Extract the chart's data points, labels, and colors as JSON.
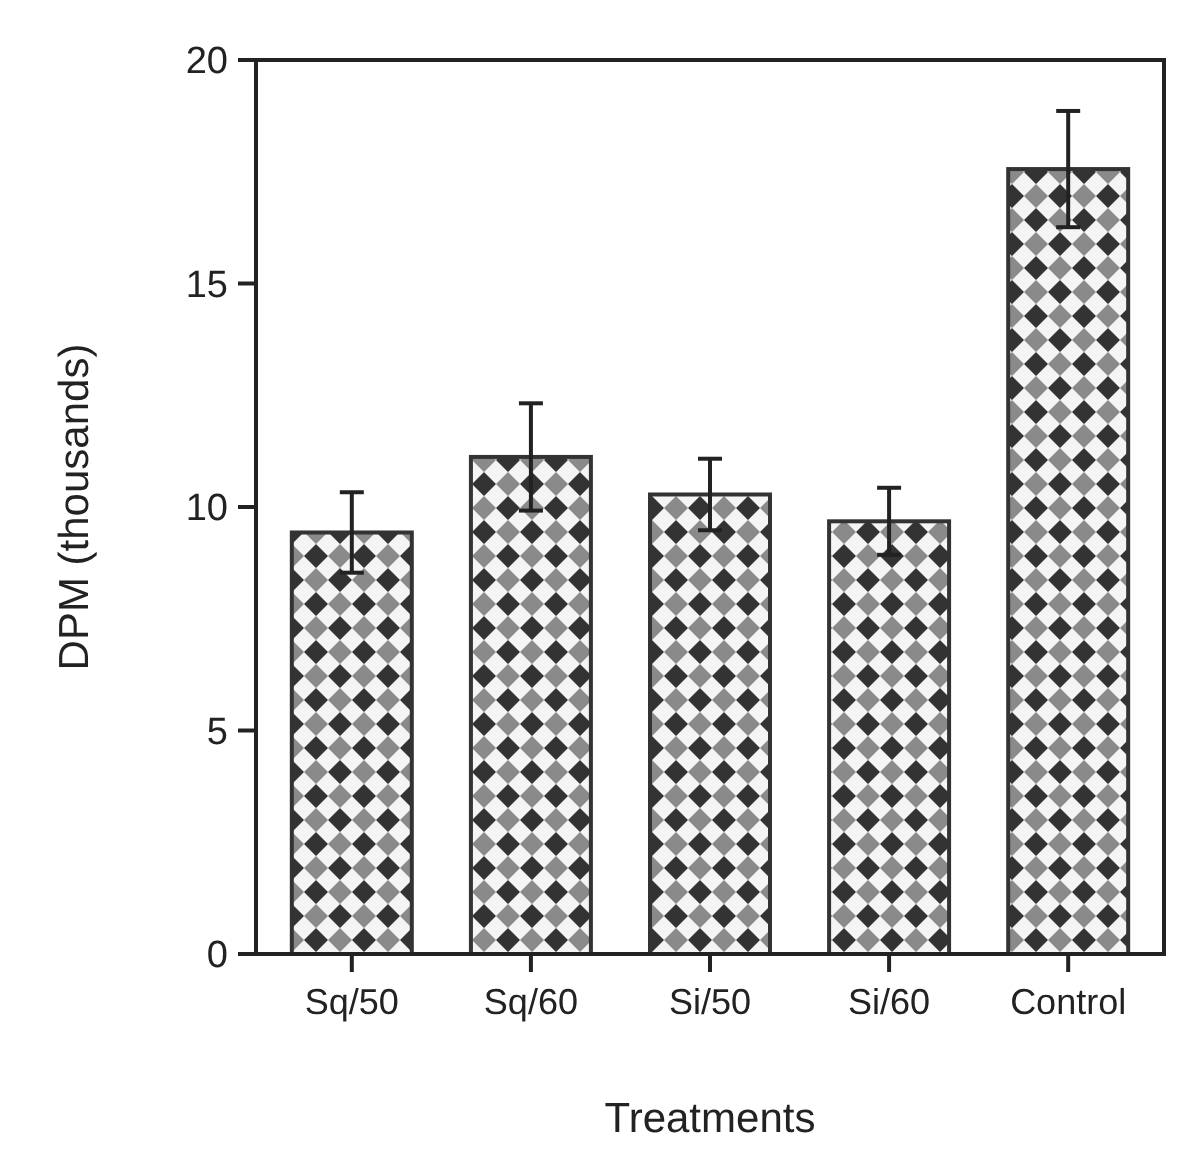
{
  "chart_data": {
    "type": "bar",
    "xlabel": "Treatments",
    "ylabel": "DPM (thousands)",
    "categories": [
      "Sq/50",
      "Sq/60",
      "Si/50",
      "Si/60",
      "Control"
    ],
    "values": [
      9.43,
      11.12,
      10.28,
      9.68,
      17.56
    ],
    "errors": [
      0.9,
      1.2,
      0.8,
      0.75,
      1.3
    ],
    "color": "#333333",
    "ylim": [
      0,
      20
    ],
    "yticks": [
      0,
      5,
      10,
      15,
      20
    ],
    "grid": false
  }
}
